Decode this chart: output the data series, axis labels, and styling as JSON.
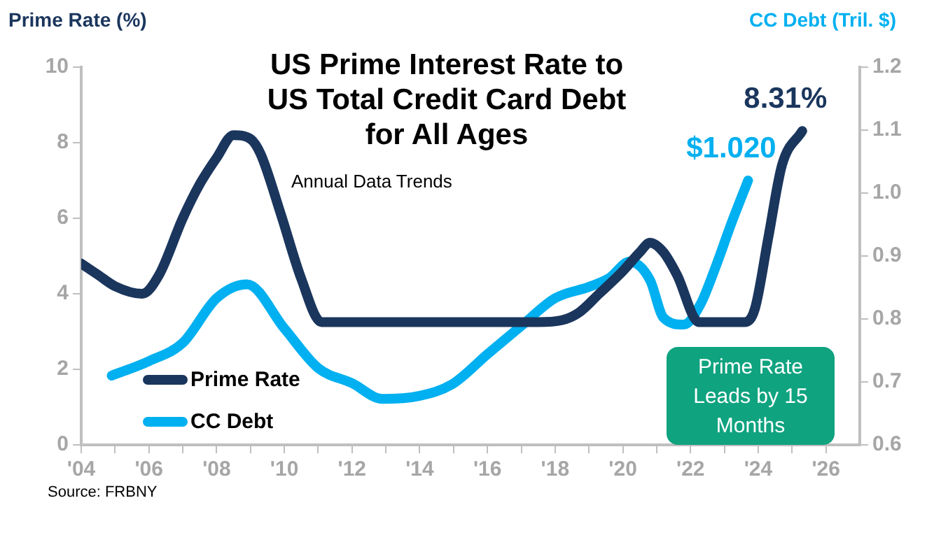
{
  "chart_data": {
    "type": "line",
    "title": "US Prime Interest Rate to US Total Credit Card Debt for All Ages",
    "subtitle": "Annual Data Trends",
    "ylabel": "Prime Rate (%)",
    "y2label": "CC Debt (Tril. $)",
    "xlim": [
      2004,
      2027
    ],
    "xticks": [
      {
        "value": 2004,
        "label": "'04"
      },
      {
        "value": 2005,
        "label": null
      },
      {
        "value": 2006,
        "label": "'06"
      },
      {
        "value": 2007,
        "label": null
      },
      {
        "value": 2008,
        "label": "'08"
      },
      {
        "value": 2009,
        "label": null
      },
      {
        "value": 2010,
        "label": "'10"
      },
      {
        "value": 2011,
        "label": null
      },
      {
        "value": 2012,
        "label": "'12"
      },
      {
        "value": 2013,
        "label": null
      },
      {
        "value": 2014,
        "label": "'14"
      },
      {
        "value": 2015,
        "label": null
      },
      {
        "value": 2016,
        "label": "'16"
      },
      {
        "value": 2017,
        "label": null
      },
      {
        "value": 2018,
        "label": "'18"
      },
      {
        "value": 2019,
        "label": null
      },
      {
        "value": 2020,
        "label": "'20"
      },
      {
        "value": 2021,
        "label": null
      },
      {
        "value": 2022,
        "label": "'22"
      },
      {
        "value": 2023,
        "label": null
      },
      {
        "value": 2024,
        "label": "'24"
      },
      {
        "value": 2025,
        "label": null
      },
      {
        "value": 2026,
        "label": "'26"
      }
    ],
    "ylim": [
      0,
      10
    ],
    "yticks": [
      0,
      2,
      4,
      6,
      8,
      10
    ],
    "y2lim": [
      0.6,
      1.2
    ],
    "y2ticks": [
      {
        "value": 0.6,
        "label": "0.6"
      },
      {
        "value": 0.7,
        "label": "0.7"
      },
      {
        "value": 0.8,
        "label": "0.8"
      },
      {
        "value": 0.9,
        "label": "0.9"
      },
      {
        "value": 1.0,
        "label": "1.0"
      },
      {
        "value": 1.1,
        "label": "1.1"
      },
      {
        "value": 1.2,
        "label": "1.2"
      }
    ],
    "grid": false,
    "legend": "bottom left",
    "marker": "none",
    "line_style": "solid",
    "series": [
      {
        "name": "Prime Rate",
        "color": "#1b365d",
        "x": [
          2004,
          2004.5,
          2005,
          2005.8,
          2006.3,
          2007,
          2007.5,
          2008,
          2008.5,
          2009,
          2009.3,
          2009.9,
          2010.5,
          2011.1,
          2017.5,
          2018.2,
          2018.7,
          2019.3,
          2020,
          2020.5,
          2020.8,
          2021.2,
          2021.6,
          2022.25,
          2023.6,
          2023.9,
          2024.3,
          2024.7,
          2025.3
        ],
        "values": [
          4.8,
          4.5,
          4.2,
          4.0,
          4.5,
          6.0,
          6.9,
          7.6,
          8.2,
          8.1,
          7.7,
          6.1,
          4.4,
          3.25,
          3.25,
          3.3,
          3.5,
          4.0,
          4.6,
          5.1,
          5.35,
          5.1,
          4.5,
          3.25,
          3.25,
          3.6,
          5.5,
          7.4,
          8.31
        ],
        "value_labels": [
          null,
          null,
          null,
          null,
          null,
          null,
          null,
          null,
          null,
          null,
          null,
          null,
          null,
          null,
          null,
          null,
          null,
          null,
          null,
          null,
          null,
          null,
          null,
          null,
          null,
          null,
          null,
          null,
          "8.31%"
        ]
      },
      {
        "name": "CC Debt",
        "color": "#00b0f0",
        "axis": "y2",
        "x": [
          2004.9,
          2006,
          2007,
          2008,
          2008.9,
          2010,
          2011,
          2012,
          2012.9,
          2014,
          2014.95,
          2016,
          2017,
          2018,
          2019,
          2019.6,
          2020.2,
          2020.8,
          2021.2,
          2021.8,
          2022.3,
          2022.75,
          2023.2,
          2023.7
        ],
        "values": [
          0.71,
          0.733,
          0.762,
          0.833,
          0.855,
          0.785,
          0.722,
          0.698,
          0.673,
          0.678,
          0.696,
          0.744,
          0.789,
          0.833,
          0.851,
          0.865,
          0.891,
          0.862,
          0.802,
          0.791,
          0.824,
          0.884,
          0.951,
          1.02
        ],
        "value_labels": [
          null,
          null,
          null,
          null,
          null,
          null,
          null,
          null,
          null,
          null,
          null,
          null,
          null,
          null,
          null,
          null,
          null,
          null,
          null,
          null,
          null,
          null,
          null,
          "$1.020"
        ]
      }
    ],
    "annotations": [
      "Prime Rate Leads by 15 Months",
      "Source:  FRBNY"
    ]
  }
}
